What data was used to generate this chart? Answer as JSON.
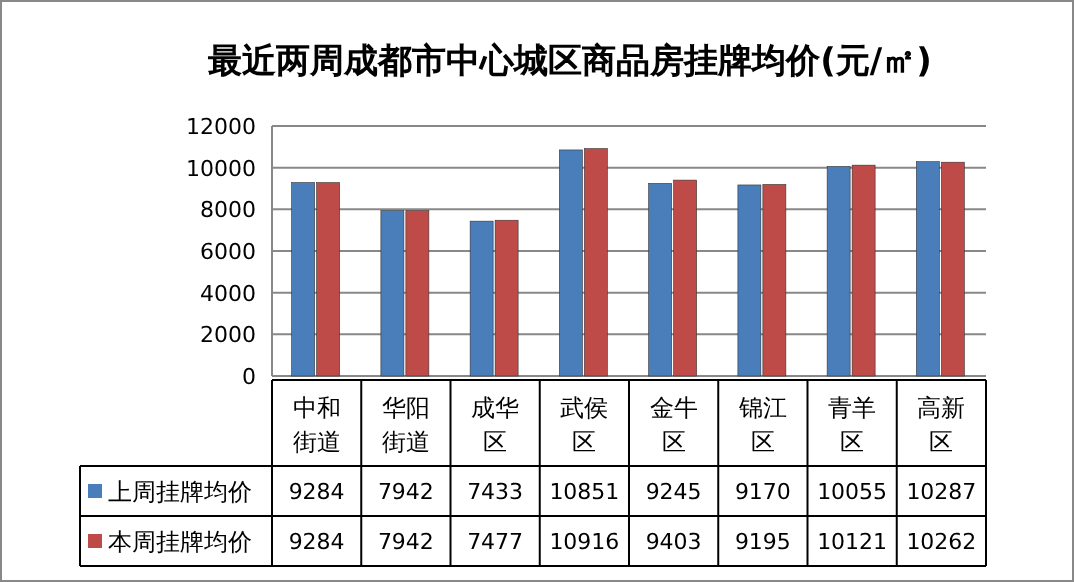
{
  "chart_data": {
    "type": "bar",
    "title": "最近两周成都市中心城区商品房挂牌均价(元/㎡)",
    "categories": [
      "中和街道",
      "华阳街道",
      "成华区",
      "武侯区",
      "金牛区",
      "锦江区",
      "青羊区",
      "高新区"
    ],
    "series": [
      {
        "name": "上周挂牌均价",
        "color": "#4a7ebb",
        "values": [
          9284,
          7942,
          7433,
          10851,
          9245,
          9170,
          10055,
          10287
        ]
      },
      {
        "name": "本周挂牌均价",
        "color": "#be4b48",
        "values": [
          9284,
          7942,
          7477,
          10916,
          9403,
          9195,
          10121,
          10262
        ]
      }
    ],
    "ylim": [
      0,
      12000
    ],
    "yticks": [
      0,
      2000,
      4000,
      6000,
      8000,
      10000,
      12000
    ],
    "grid": "y",
    "legend": "bottom",
    "data_labels": true
  }
}
